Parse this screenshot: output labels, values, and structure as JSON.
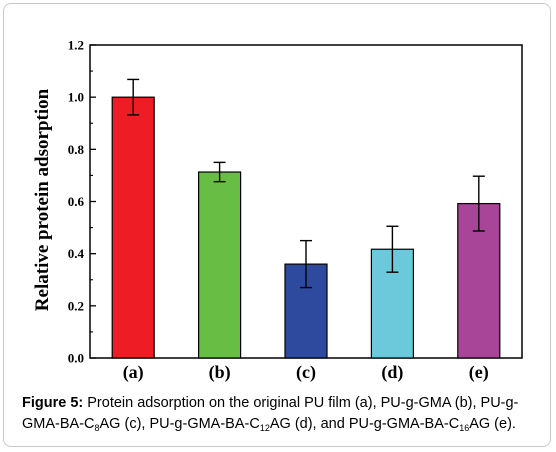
{
  "chart_data": {
    "type": "bar",
    "categories": [
      "(a)",
      "(b)",
      "(c)",
      "(d)",
      "(e)"
    ],
    "values": [
      1.0,
      0.713,
      0.36,
      0.417,
      0.592
    ],
    "errors": [
      0.068,
      0.037,
      0.09,
      0.088,
      0.105
    ],
    "bar_colors": [
      "#ee1c25",
      "#68bd45",
      "#2e4a9e",
      "#6cc9dc",
      "#a94598"
    ],
    "ylabel": "Relative protein adsorption",
    "ylim": [
      0.0,
      1.2
    ],
    "yticks": [
      "0.0",
      "0.2",
      "0.4",
      "0.6",
      "0.8",
      "1.0",
      "1.2"
    ],
    "ytick_values": [
      0.0,
      0.2,
      0.4,
      0.6,
      0.8,
      1.0,
      1.2
    ],
    "grid": false,
    "legend": "none"
  },
  "caption": {
    "label": "Figure 5:",
    "parts": [
      {
        "t": " Protein adsorption on the original PU film (a), PU-g-GMA (b), PU-g-GMA-BA-C"
      },
      {
        "sub": "8"
      },
      {
        "t": "AG (c), PU-g-GMA-BA-C"
      },
      {
        "sub": "12"
      },
      {
        "t": "AG (d), and PU-g-GMA-BA-C"
      },
      {
        "sub": "16"
      },
      {
        "t": "AG (e)."
      }
    ]
  }
}
